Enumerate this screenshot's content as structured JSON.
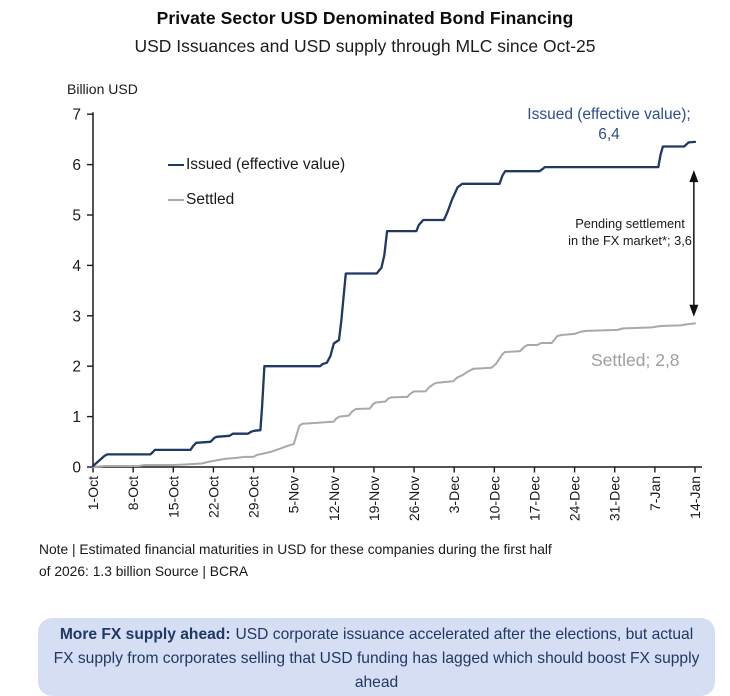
{
  "header": {
    "title": "Private Sector USD Denominated Bond Financing",
    "subtitle": "USD Issuances and USD supply through MLC since Oct-25"
  },
  "chart_data": {
    "type": "line",
    "title": "Private Sector USD Denominated Bond Financing",
    "subtitle": "USD Issuances and USD supply through MLC since Oct-25",
    "ylabel": "Billion USD",
    "xlabel": "",
    "ylim": [
      0,
      7
    ],
    "yticks": [
      0,
      1,
      2,
      3,
      4,
      5,
      6,
      7
    ],
    "x_domain": [
      0,
      105
    ],
    "x_days_per_tick": 7,
    "xticklabels": [
      "1-Oct",
      "8-Oct",
      "15-Oct",
      "22-Oct",
      "29-Oct",
      "5-Nov",
      "12-Nov",
      "19-Nov",
      "26-Nov",
      "3-Dec",
      "10-Dec",
      "17-Dec",
      "24-Dec",
      "31-Dec",
      "7-Jan",
      "14-Jan"
    ],
    "grid": false,
    "legend_position": "upper-left-inside",
    "axis_color": "#1a1a1a",
    "series": [
      {
        "name": "Issued (effective value)",
        "color": "#1f3864",
        "stroke_width": 2.3,
        "final_value": "6,4",
        "points": [
          [
            0,
            0.02
          ],
          [
            1,
            0.12
          ],
          [
            2,
            0.22
          ],
          [
            2.5,
            0.25
          ],
          [
            10,
            0.25
          ],
          [
            10.4,
            0.29
          ],
          [
            10.8,
            0.34
          ],
          [
            17,
            0.34
          ],
          [
            17.5,
            0.42
          ],
          [
            18,
            0.48
          ],
          [
            20.5,
            0.5
          ],
          [
            21.2,
            0.58
          ],
          [
            21.6,
            0.6
          ],
          [
            23.8,
            0.62
          ],
          [
            24.4,
            0.66
          ],
          [
            27,
            0.66
          ],
          [
            27.6,
            0.7
          ],
          [
            28.2,
            0.72
          ],
          [
            29.2,
            0.73
          ],
          [
            29.5,
            1.2
          ],
          [
            29.9,
            2.0
          ],
          [
            39.6,
            2.0
          ],
          [
            40,
            2.04
          ],
          [
            40.8,
            2.07
          ],
          [
            41.4,
            2.2
          ],
          [
            42,
            2.45
          ],
          [
            42.9,
            2.52
          ],
          [
            43.3,
            2.9
          ],
          [
            44.1,
            3.84
          ],
          [
            49.5,
            3.84
          ],
          [
            49.9,
            3.9
          ],
          [
            50.3,
            3.95
          ],
          [
            50.8,
            4.2
          ],
          [
            51.3,
            4.68
          ],
          [
            56.4,
            4.68
          ],
          [
            56.8,
            4.8
          ],
          [
            57.6,
            4.9
          ],
          [
            61.2,
            4.9
          ],
          [
            61.8,
            5.05
          ],
          [
            62.6,
            5.3
          ],
          [
            63.6,
            5.55
          ],
          [
            64.4,
            5.62
          ],
          [
            70.9,
            5.62
          ],
          [
            71.4,
            5.78
          ],
          [
            71.9,
            5.87
          ],
          [
            77.9,
            5.87
          ],
          [
            78.4,
            5.91
          ],
          [
            78.8,
            5.95
          ],
          [
            98.6,
            5.95
          ],
          [
            99,
            6.2
          ],
          [
            99.4,
            6.36
          ],
          [
            103.1,
            6.36
          ],
          [
            103.5,
            6.4
          ],
          [
            103.9,
            6.44
          ],
          [
            105,
            6.45
          ]
        ]
      },
      {
        "name": "Settled",
        "color": "#a9a9a9",
        "stroke_width": 2.0,
        "final_value": "2,8",
        "points": [
          [
            0,
            0.0
          ],
          [
            2,
            0.02
          ],
          [
            8,
            0.02
          ],
          [
            9,
            0.04
          ],
          [
            14,
            0.04
          ],
          [
            16,
            0.05
          ],
          [
            19,
            0.07
          ],
          [
            20,
            0.1
          ],
          [
            21.5,
            0.13
          ],
          [
            23,
            0.16
          ],
          [
            25,
            0.18
          ],
          [
            26.5,
            0.2
          ],
          [
            28,
            0.2
          ],
          [
            28.6,
            0.24
          ],
          [
            29.5,
            0.26
          ],
          [
            31,
            0.3
          ],
          [
            32.5,
            0.36
          ],
          [
            33.5,
            0.4
          ],
          [
            34.5,
            0.44
          ],
          [
            35,
            0.45
          ],
          [
            35.4,
            0.6
          ],
          [
            36,
            0.82
          ],
          [
            36.5,
            0.86
          ],
          [
            38,
            0.87
          ],
          [
            42,
            0.9
          ],
          [
            42.4,
            0.96
          ],
          [
            43,
            1.0
          ],
          [
            44.6,
            1.02
          ],
          [
            45.2,
            1.1
          ],
          [
            45.8,
            1.15
          ],
          [
            48.3,
            1.16
          ],
          [
            48.8,
            1.24
          ],
          [
            49.3,
            1.28
          ],
          [
            51,
            1.3
          ],
          [
            51.5,
            1.36
          ],
          [
            52,
            1.38
          ],
          [
            54.8,
            1.39
          ],
          [
            55.3,
            1.45
          ],
          [
            56,
            1.5
          ],
          [
            58,
            1.5
          ],
          [
            58.6,
            1.58
          ],
          [
            59.5,
            1.65
          ],
          [
            60,
            1.67
          ],
          [
            62.8,
            1.7
          ],
          [
            63.6,
            1.78
          ],
          [
            64.4,
            1.82
          ],
          [
            65.5,
            1.9
          ],
          [
            66.4,
            1.95
          ],
          [
            69.5,
            1.97
          ],
          [
            70.3,
            2.05
          ],
          [
            71.3,
            2.22
          ],
          [
            71.8,
            2.28
          ],
          [
            74.5,
            2.3
          ],
          [
            75.2,
            2.38
          ],
          [
            75.8,
            2.42
          ],
          [
            77.5,
            2.42
          ],
          [
            78.2,
            2.46
          ],
          [
            80,
            2.46
          ],
          [
            81,
            2.6
          ],
          [
            81.7,
            2.62
          ],
          [
            84,
            2.64
          ],
          [
            85,
            2.68
          ],
          [
            86,
            2.7
          ],
          [
            91.5,
            2.72
          ],
          [
            92.5,
            2.75
          ],
          [
            97.5,
            2.77
          ],
          [
            98.5,
            2.79
          ],
          [
            99.5,
            2.8
          ],
          [
            102.5,
            2.81
          ],
          [
            103.5,
            2.83
          ],
          [
            105,
            2.85
          ]
        ]
      }
    ],
    "annotations": {
      "issued_label_line1": "Issued (effective value);",
      "issued_label_line2": "6,4",
      "issued_label_color": "#2e4d8f",
      "pending_line1": "Pending settlement",
      "pending_line2": "in the FX market*; 3,6",
      "pending_color": "#1a1a1a",
      "settled_label": "Settled; 2,8",
      "settled_label_color": "#9e9e9e",
      "arrow": {
        "x_day": 104.8,
        "value_top": 5.89,
        "value_bottom": 2.98,
        "color": "#111111"
      }
    }
  },
  "note": {
    "line1": "Note | Estimated financial maturities in USD for these companies during the first half",
    "line2": "of 2026: 1.3 billion Source | BCRA"
  },
  "callout": {
    "lead": "More FX supply ahead:",
    "body": "USD corporate issuance accelerated after the elections, but actual FX supply from corporates selling that USD funding has lagged which should boost FX supply ahead",
    "bg": "#d6def4",
    "text_color": "#1f3864"
  }
}
